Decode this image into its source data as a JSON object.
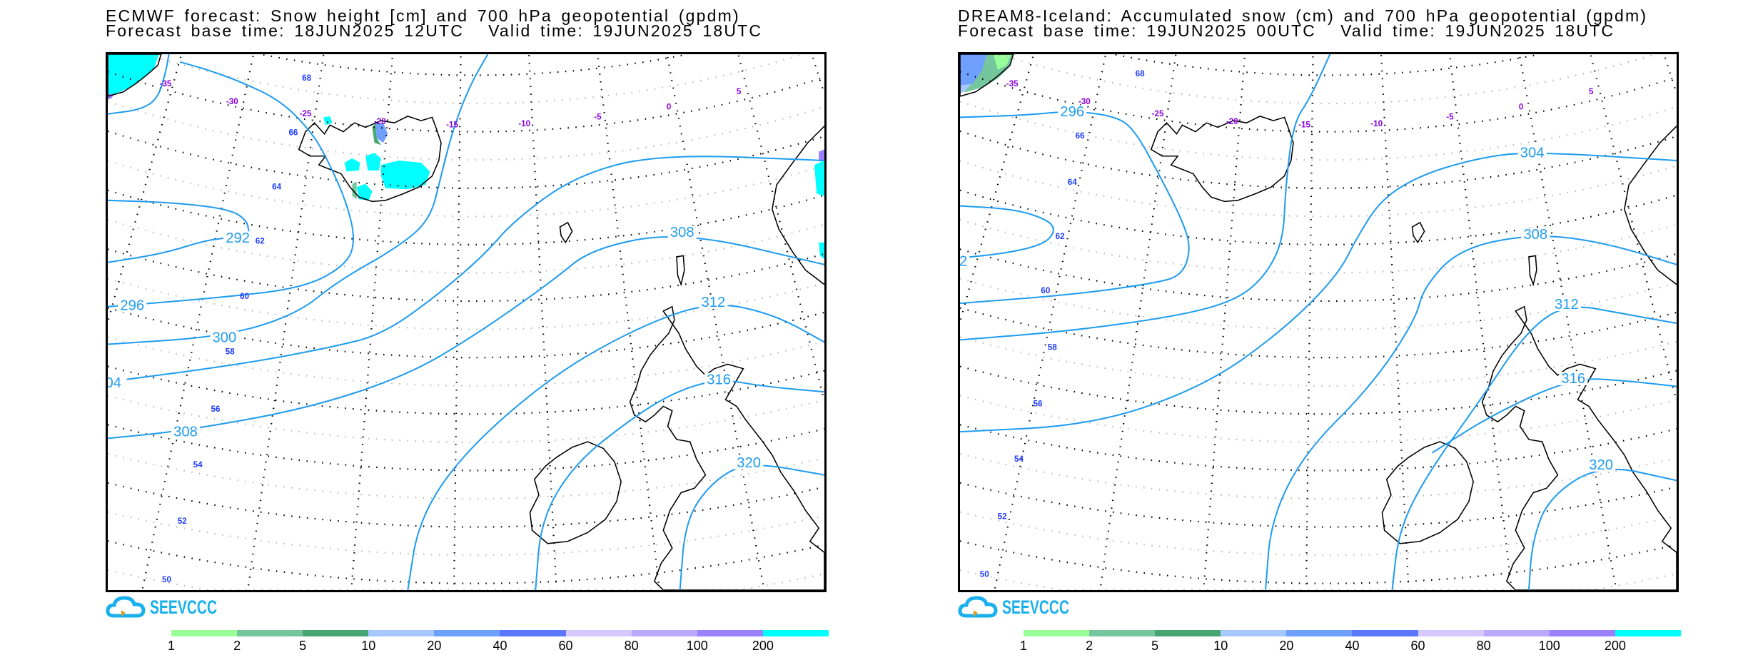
{
  "panels": [
    {
      "title_line1": "ECMWF forecast: Snow height [cm] and 700 hPa geopotential (gpdm)",
      "base_time": "Forecast base time: 18JUN2025 12UTC",
      "valid_time": "Valid time: 19JUN2025 18UTC",
      "contour_labels": [
        "292",
        "296",
        "300",
        "04",
        "308",
        "308",
        "312",
        "316",
        "320"
      ],
      "lon_labels": [
        "-35",
        "-30",
        "-25",
        "-20",
        "-15",
        "-10",
        "-5",
        "0",
        "5"
      ],
      "lat_labels": [
        "68",
        "66",
        "64",
        "62",
        "60",
        "58",
        "56",
        "54",
        "52",
        "50"
      ],
      "logo_text": "SEEVCCC"
    },
    {
      "title_line1": "DREAM8-Iceland: Accumulated snow (cm) and 700 hPa geopotential (gpdm)",
      "base_time": "Forecast base time: 19JUN2025 00UTC",
      "valid_time": "Valid time: 19JUN2025 18UTC",
      "contour_labels": [
        "2",
        "296",
        "304",
        "308",
        "312",
        "316",
        "320"
      ],
      "lon_labels": [
        "-35",
        "-30",
        "-25",
        "-20",
        "-15",
        "-10",
        "-5",
        "0",
        "5"
      ],
      "lat_labels": [
        "68",
        "66",
        "64",
        "62",
        "60",
        "58",
        "56",
        "54",
        "52",
        "50"
      ],
      "logo_text": "SEEVCCC"
    }
  ],
  "legend": {
    "labels": [
      "1",
      "2",
      "5",
      "10",
      "20",
      "40",
      "60",
      "80",
      "100",
      "200"
    ],
    "colors": [
      "#99ff99",
      "#74c69d",
      "#48a673",
      "#a6c8ff",
      "#6f9fff",
      "#5a78ff",
      "#d6c8ff",
      "#bba8ff",
      "#9b80ff",
      "#00ffff"
    ]
  },
  "colors": {
    "contour": "#1e9cf0",
    "lon_label": "#8a00e0",
    "lat_label": "#1f3cff",
    "logo": "#1ab0ee"
  }
}
